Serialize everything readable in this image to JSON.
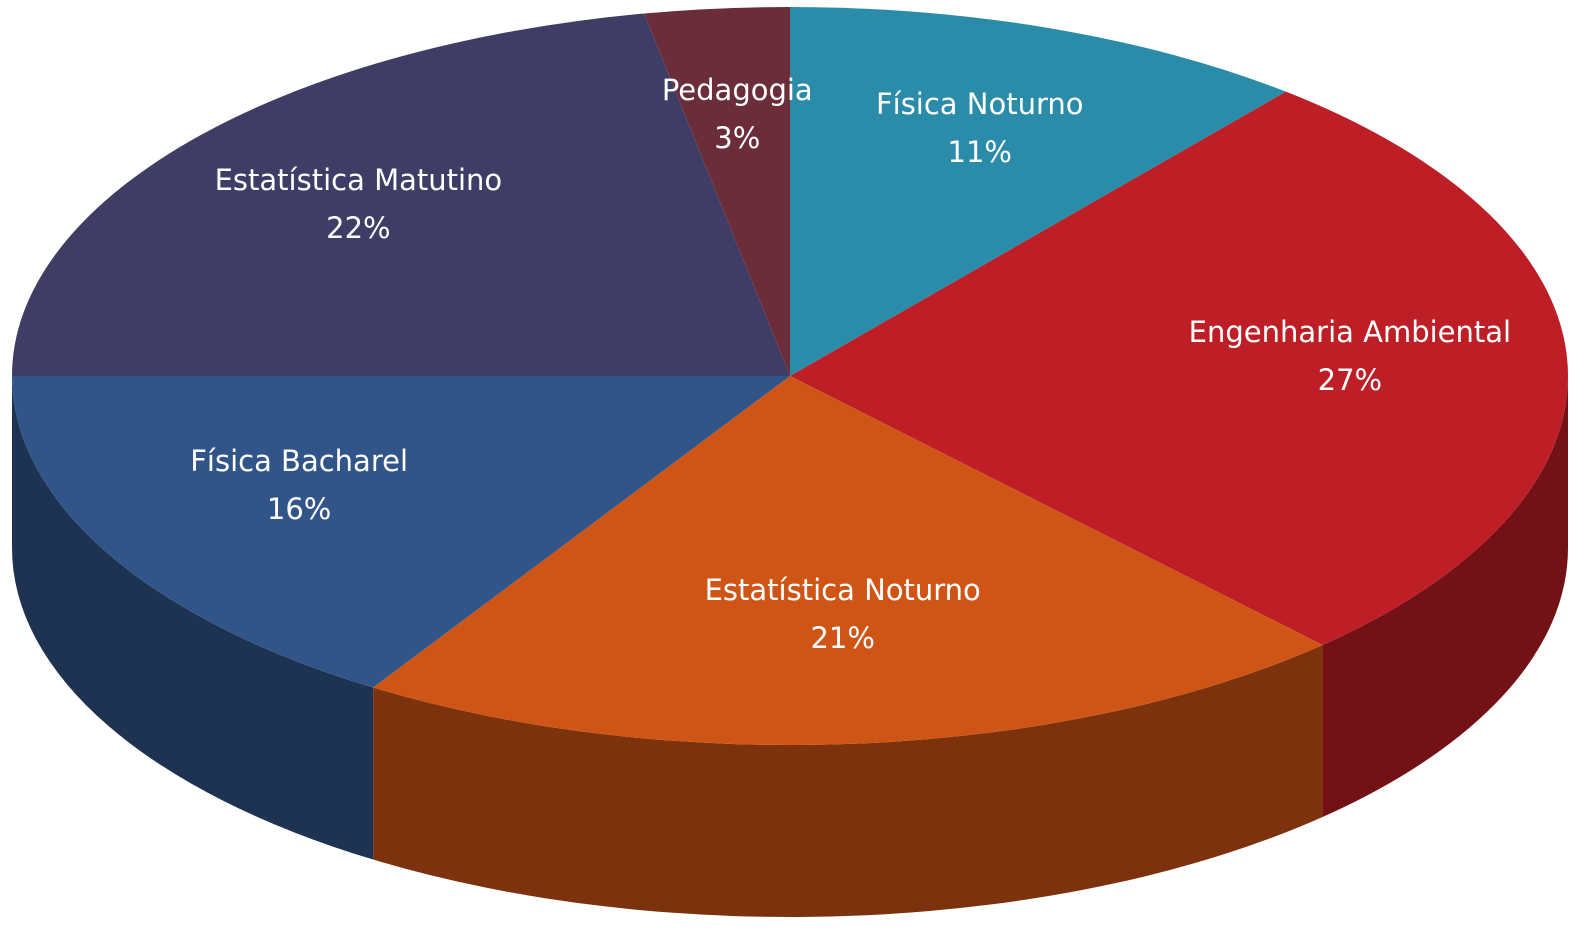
{
  "chart_data": {
    "type": "pie",
    "categories": [
      "Física Noturno",
      "Engenharia Ambiental",
      "Estatística Noturno",
      "Física Bacharel",
      "Estatística Matutino",
      "Pedagogia"
    ],
    "values": [
      11,
      27,
      21,
      16,
      22,
      3
    ],
    "value_labels": [
      "11%",
      "27%",
      "21%",
      "16%",
      "22%",
      "3%"
    ],
    "colors": [
      "#2a8ca8",
      "#be1e26",
      "#cf5516",
      "#325589",
      "#3f3d66",
      "#6c2d3a"
    ]
  }
}
